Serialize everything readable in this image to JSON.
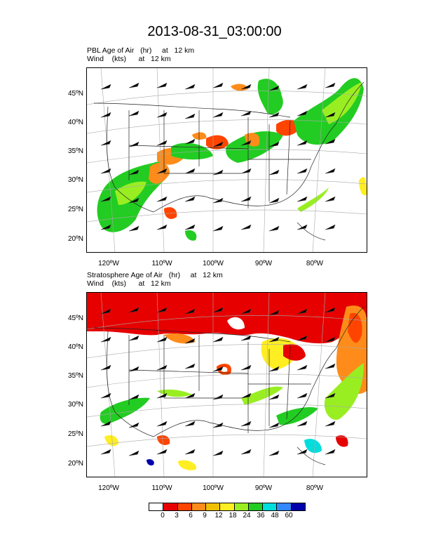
{
  "title": "2013-08-31_03:00:00",
  "top_panel": {
    "line1": "PBL Age of Air   (hr)     at   12 km",
    "line2": "Wind    (kts)      at   12 km"
  },
  "bottom_panel": {
    "line1": "Stratosphere Age of Air   (hr)     at   12 km",
    "line2": "Wind    (kts)      at   12 km"
  },
  "lat_labels": [
    "45ºN",
    "40ºN",
    "35ºN",
    "30ºN",
    "25ºN",
    "20ºN"
  ],
  "lon_labels": [
    "120ºW",
    "110ºW",
    "100ºW",
    "90ºW",
    "80ºW"
  ],
  "legend": {
    "ticks": [
      "0",
      "3",
      "6",
      "9",
      "12",
      "18",
      "24",
      "36",
      "48",
      "60"
    ],
    "colors": [
      "#ffffff",
      "#e60000",
      "#ff4400",
      "#ff8c1a",
      "#f0c000",
      "#ffee22",
      "#99ee22",
      "#22cc22",
      "#00dddd",
      "#3388ff",
      "#0000aa"
    ]
  }
}
